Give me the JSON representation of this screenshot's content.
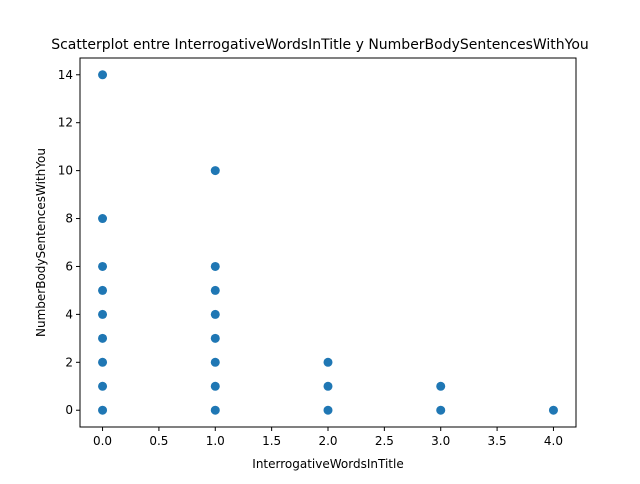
{
  "chart_data": {
    "type": "scatter",
    "title": "Scatterplot entre InterrogativeWordsInTitle y NumberBodySentencesWithYou",
    "xlabel": "InterrogativeWordsInTitle",
    "ylabel": "NumberBodySentencesWithYou",
    "xlim": [
      -0.2,
      4.2
    ],
    "ylim": [
      -0.7,
      14.7
    ],
    "xticks": [
      0.0,
      0.5,
      1.0,
      1.5,
      2.0,
      2.5,
      3.0,
      3.5,
      4.0
    ],
    "xtick_labels": [
      "0.0",
      "0.5",
      "1.0",
      "1.5",
      "2.0",
      "2.5",
      "3.0",
      "3.5",
      "4.0"
    ],
    "yticks": [
      0,
      2,
      4,
      6,
      8,
      10,
      12,
      14
    ],
    "ytick_labels": [
      "0",
      "2",
      "4",
      "6",
      "8",
      "10",
      "12",
      "14"
    ],
    "grid": false,
    "legend": "none",
    "marker_color": "#1f77b4",
    "points": [
      {
        "x": 0,
        "y": 0
      },
      {
        "x": 0,
        "y": 1
      },
      {
        "x": 0,
        "y": 2
      },
      {
        "x": 0,
        "y": 3
      },
      {
        "x": 0,
        "y": 4
      },
      {
        "x": 0,
        "y": 5
      },
      {
        "x": 0,
        "y": 6
      },
      {
        "x": 0,
        "y": 8
      },
      {
        "x": 0,
        "y": 14
      },
      {
        "x": 1,
        "y": 0
      },
      {
        "x": 1,
        "y": 1
      },
      {
        "x": 1,
        "y": 2
      },
      {
        "x": 1,
        "y": 3
      },
      {
        "x": 1,
        "y": 4
      },
      {
        "x": 1,
        "y": 5
      },
      {
        "x": 1,
        "y": 6
      },
      {
        "x": 1,
        "y": 10
      },
      {
        "x": 2,
        "y": 0
      },
      {
        "x": 2,
        "y": 1
      },
      {
        "x": 2,
        "y": 2
      },
      {
        "x": 3,
        "y": 0
      },
      {
        "x": 3,
        "y": 1
      },
      {
        "x": 4,
        "y": 0
      }
    ]
  }
}
